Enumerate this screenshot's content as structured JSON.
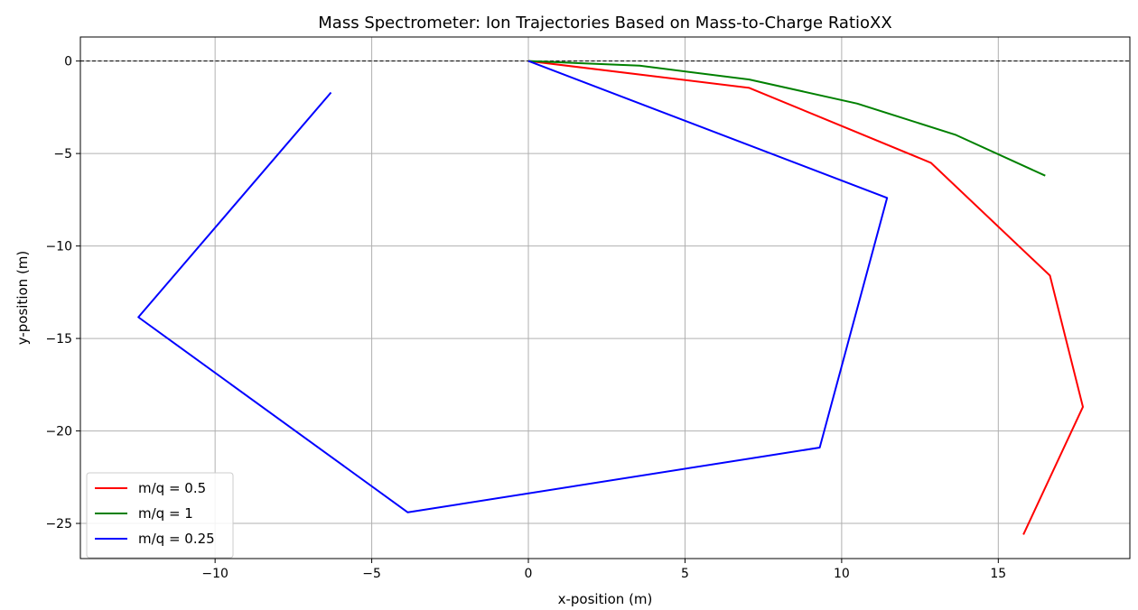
{
  "chart_data": {
    "type": "line",
    "title": "Mass Spectrometer: Ion Trajectories Based on Mass-to-Charge RatioXX",
    "xlabel": "x-position (m)",
    "ylabel": "y-position (m)",
    "xlim": [
      -14.3,
      19.2
    ],
    "ylim": [
      -26.9,
      1.3
    ],
    "xticks": [
      -10,
      -5,
      0,
      5,
      10,
      15
    ],
    "xtick_labels": [
      "−10",
      "−5",
      "0",
      "5",
      "10",
      "15"
    ],
    "yticks": [
      0,
      -5,
      -10,
      -15,
      -20,
      -25
    ],
    "ytick_labels": [
      "0",
      "−5",
      "−10",
      "−15",
      "−20",
      "−25"
    ],
    "grid": true,
    "reference_line": {
      "y": 0,
      "style": "dashed",
      "color": "#000000"
    },
    "legend_position": "lower-left",
    "series": [
      {
        "name": "m/q = 0.5",
        "color": "#ff0000",
        "x": [
          0,
          7.05,
          12.85,
          16.65,
          17.7,
          15.8
        ],
        "y": [
          0,
          -1.45,
          -5.5,
          -11.6,
          -18.7,
          -25.6
        ]
      },
      {
        "name": "m/q = 1",
        "color": "#008000",
        "x": [
          0,
          3.55,
          7.05,
          10.5,
          13.65,
          16.5
        ],
        "y": [
          0,
          -0.25,
          -1.0,
          -2.3,
          -4.0,
          -6.2
        ]
      },
      {
        "name": "m/q = 0.25",
        "color": "#0000ff",
        "x": [
          0,
          11.45,
          9.3,
          -3.85,
          -12.45,
          -6.3
        ],
        "y": [
          0,
          -7.4,
          -20.9,
          -24.4,
          -13.85,
          -1.7
        ]
      }
    ]
  }
}
